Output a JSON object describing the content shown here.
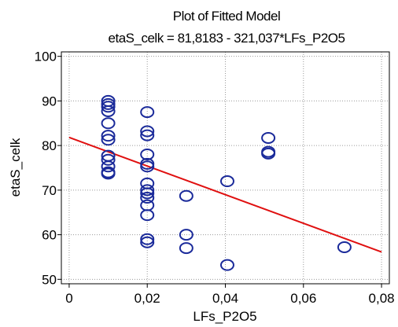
{
  "chart_data": {
    "type": "scatter",
    "title": "Plot of Fitted Model",
    "subtitle": "etaS_celk = 81,8183 - 321,037*LFs_P2O5",
    "xlabel": "LFs_P2O5",
    "ylabel": "etaS_celk",
    "xlim": [
      -0.002,
      0.082
    ],
    "ylim": [
      49,
      101
    ],
    "xticks": [
      0,
      0.02,
      0.04,
      0.06,
      0.08
    ],
    "xtick_labels": [
      "0",
      "0,02",
      "0,04",
      "0,06",
      "0,08"
    ],
    "yticks": [
      50,
      60,
      70,
      80,
      90,
      100
    ],
    "ytick_labels": [
      "50",
      "60",
      "70",
      "80",
      "90",
      "100"
    ],
    "grid": true,
    "fit_line": {
      "intercept": 81.8183,
      "slope": -321.037,
      "x_range": [
        0,
        0.08
      ]
    },
    "points": [
      {
        "x": 0.01,
        "y": 90.0
      },
      {
        "x": 0.01,
        "y": 89.3
      },
      {
        "x": 0.01,
        "y": 88.7
      },
      {
        "x": 0.01,
        "y": 87.7
      },
      {
        "x": 0.01,
        "y": 85.0
      },
      {
        "x": 0.01,
        "y": 82.2
      },
      {
        "x": 0.01,
        "y": 81.3
      },
      {
        "x": 0.01,
        "y": 77.7
      },
      {
        "x": 0.01,
        "y": 76.8
      },
      {
        "x": 0.01,
        "y": 75.3
      },
      {
        "x": 0.01,
        "y": 74.0
      },
      {
        "x": 0.01,
        "y": 73.7
      },
      {
        "x": 0.02,
        "y": 87.5
      },
      {
        "x": 0.02,
        "y": 83.2
      },
      {
        "x": 0.02,
        "y": 82.3
      },
      {
        "x": 0.02,
        "y": 78.0
      },
      {
        "x": 0.02,
        "y": 75.9
      },
      {
        "x": 0.02,
        "y": 75.3
      },
      {
        "x": 0.02,
        "y": 71.5
      },
      {
        "x": 0.02,
        "y": 70.0
      },
      {
        "x": 0.02,
        "y": 69.3
      },
      {
        "x": 0.02,
        "y": 68.3
      },
      {
        "x": 0.02,
        "y": 66.6
      },
      {
        "x": 0.02,
        "y": 64.4
      },
      {
        "x": 0.02,
        "y": 59.0
      },
      {
        "x": 0.02,
        "y": 58.3
      },
      {
        "x": 0.03,
        "y": 68.7
      },
      {
        "x": 0.03,
        "y": 60.0
      },
      {
        "x": 0.03,
        "y": 57.0
      },
      {
        "x": 0.0405,
        "y": 72.0
      },
      {
        "x": 0.0405,
        "y": 53.2
      },
      {
        "x": 0.051,
        "y": 81.7
      },
      {
        "x": 0.051,
        "y": 78.6
      },
      {
        "x": 0.051,
        "y": 78.2
      },
      {
        "x": 0.0705,
        "y": 57.2
      }
    ]
  }
}
